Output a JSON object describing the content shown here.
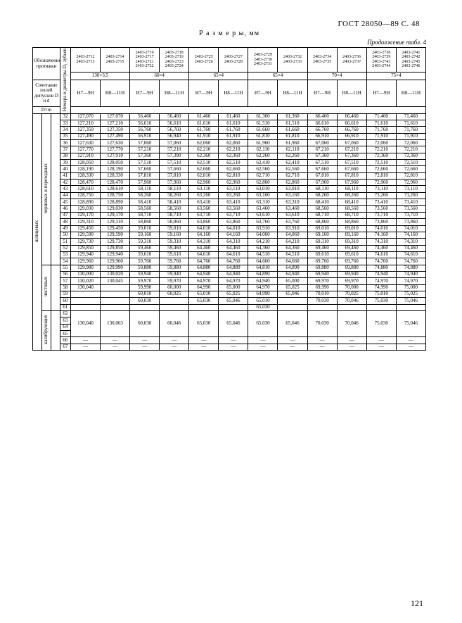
{
  "gost_header": "ГОСТ  28050—89   С.   48",
  "page_number": "121",
  "size_heading": "Р а з м е р ы,  мм",
  "continuation": "Продолжение табл. 4",
  "th_designation": "Обозначение протяжки",
  "th_field_combo": "Сочетание полей допусков D и d",
  "th_dxm": "D×m",
  "th_row_label": "Номера и диаметры D₁ зубьев",
  "th_spline": "шлицевых",
  "th_rough_trans": "черновых и переходных",
  "th_finish": "чистовых",
  "th_calib": "калибрующих",
  "grp_codes": [
    [
      "2403-2712",
      "2403-2713"
    ],
    [
      "2403-2714",
      "2403-2715"
    ],
    [
      "2403-2716",
      "2403-2717",
      "2403-2721",
      "2403-2722"
    ],
    [
      "2403-2718",
      "2403-2719",
      "2403-2723",
      "2403-2724"
    ],
    [
      "2403-2725",
      "2403-2726"
    ],
    [
      "2403-2727",
      "2403-2728"
    ],
    [
      "2403-2729",
      "2403-2730",
      "2403-2731"
    ],
    [
      "2403-2732",
      "2403-2733"
    ],
    [
      "2403-2734",
      "2403-2735"
    ],
    [
      "2403-2736",
      "2403-2737"
    ],
    [
      "2403-2738",
      "2403-2739",
      "2403-2743",
      "2403-2744"
    ],
    [
      "2403-2741",
      "2403-2742",
      "2403-2745",
      "2403-2746"
    ]
  ],
  "grp_dxm": [
    "130×3,5",
    "",
    "60×4",
    "",
    "65×4",
    "",
    "65×4",
    "",
    "70×4",
    "",
    "75×4",
    ""
  ],
  "grp_dxm_span": [
    2,
    0,
    2,
    0,
    2,
    0,
    2,
    0,
    2,
    0,
    2,
    0
  ],
  "tol": [
    "H7—9H",
    "H8—11H",
    "H7—9H",
    "H8—11H",
    "H7—9H",
    "H8—11H",
    "H7—9H",
    "H8—11H",
    "H7—9H",
    "H8—11H",
    "H7—9H",
    "H8—11H"
  ],
  "rows": [
    {
      "n": "32",
      "v": [
        "127,070",
        "127,070",
        "56,460",
        "56,460",
        "61,460",
        "61,460",
        "61,360",
        "61,360",
        "66,460",
        "66,460",
        "71,460",
        "71,460"
      ]
    },
    {
      "n": "33",
      "v": [
        "127,210",
        "127,210",
        "56,610",
        "56,610",
        "61,610",
        "61,610",
        "61,510",
        "61,510",
        "66,610",
        "66,610",
        "71,610",
        "71,610"
      ]
    },
    {
      "n": "34",
      "v": [
        "127,350",
        "127,350",
        "56,760",
        "56,760",
        "61,760",
        "61,760",
        "61,660",
        "61,660",
        "66,760",
        "66,760",
        "71,760",
        "71,760"
      ]
    },
    {
      "n": "35",
      "v": [
        "127,490",
        "127,490",
        "56,910",
        "56,940",
        "61,910",
        "61,910",
        "61,810",
        "61,810",
        "66,910",
        "66,910",
        "71,910",
        "71,910"
      ]
    },
    {
      "n": "36",
      "v": [
        "127,630",
        "127,630",
        "57,060",
        "57,060",
        "62,060",
        "62,060",
        "61,960",
        "61,960",
        "67,060",
        "67,060",
        "72,060",
        "72,060"
      ]
    },
    {
      "n": "37",
      "v": [
        "127,770",
        "127,770",
        "57,210",
        "57,210",
        "62,210",
        "62,210",
        "62,110",
        "62,110",
        "67,210",
        "67,210",
        "72,210",
        "72,210"
      ]
    },
    {
      "n": "38",
      "v": [
        "127,910",
        "127,910",
        "57,360",
        "57,390",
        "62,360",
        "62,360",
        "62,260",
        "62,260",
        "67,360",
        "67,360",
        "72,360",
        "72,360"
      ]
    },
    {
      "n": "39",
      "v": [
        "128,050",
        "128,050",
        "57,510",
        "57,510",
        "62,510",
        "62,510",
        "62,410",
        "62,410",
        "67,510",
        "67,510",
        "72,510",
        "72,510"
      ]
    },
    {
      "n": "40",
      "v": [
        "128,190",
        "128,190",
        "57,660",
        "57,660",
        "62,660",
        "62,660",
        "62,560",
        "62,560",
        "67,660",
        "67,660",
        "72,660",
        "72,660"
      ]
    },
    {
      "n": "41",
      "v": [
        "128,330",
        "128,330",
        "57,810",
        "57,810",
        "62,810",
        "62,810",
        "62,710",
        "62,710",
        "67,810",
        "67,810",
        "72,810",
        "72,810"
      ]
    },
    {
      "n": "42",
      "v": [
        "128,470",
        "128,470",
        "57,960",
        "57,960",
        "62,960",
        "62,960",
        "62,860",
        "62,860",
        "67,960",
        "67,960",
        "72,960",
        "72,960"
      ]
    },
    {
      "n": "43",
      "v": [
        "128,610",
        "128,610",
        "58,110",
        "58,110",
        "63,110",
        "63,110",
        "63,010",
        "63,010",
        "68,110",
        "68,110",
        "73,110",
        "73,110"
      ]
    },
    {
      "n": "44",
      "v": [
        "128,750",
        "128,750",
        "58,260",
        "58,260",
        "63,260",
        "63,260",
        "63,160",
        "63,160",
        "68,260",
        "68,260",
        "73,260",
        "73,260"
      ]
    },
    {
      "n": "45",
      "v": [
        "128,890",
        "128,890",
        "58,410",
        "58,410",
        "63,410",
        "63,410",
        "63,310",
        "63,310",
        "68,410",
        "68,410",
        "73,410",
        "73,410"
      ]
    },
    {
      "n": "46",
      "v": [
        "129,030",
        "129,030",
        "58,560",
        "58,560",
        "63,560",
        "63,560",
        "63,460",
        "63,460",
        "68,560",
        "68,560",
        "73,560",
        "73,560"
      ]
    },
    {
      "n": "47",
      "v": [
        "129,170",
        "129,170",
        "58,710",
        "58,710",
        "63,710",
        "63,710",
        "63,610",
        "63,610",
        "68,710",
        "68,710",
        "73,710",
        "73,710"
      ]
    },
    {
      "n": "48",
      "v": [
        "129,310",
        "129,310",
        "58,860",
        "58,860",
        "63,860",
        "63,860",
        "63,760",
        "63,760",
        "68,860",
        "68,860",
        "73,860",
        "73,860"
      ]
    },
    {
      "n": "49",
      "v": [
        "129,450",
        "129,450",
        "59,010",
        "59,010",
        "64,010",
        "64,010",
        "63,910",
        "63,910",
        "69,010",
        "69,010",
        "74,010",
        "74,010"
      ]
    },
    {
      "n": "50",
      "v": [
        "129,590",
        "129,590",
        "59,160",
        "59,160",
        "64,160",
        "64,160",
        "64,060",
        "64,060",
        "69,160",
        "69,160",
        "74,160",
        "74,160"
      ]
    },
    {
      "n": "51",
      "v": [
        "129,730",
        "129,730",
        "59,310",
        "59,310",
        "64,310",
        "64,310",
        "64,210",
        "64,210",
        "69,310",
        "69,310",
        "74,310",
        "74,310"
      ]
    },
    {
      "n": "52",
      "v": [
        "129,850",
        "129,850",
        "59,460",
        "59,460",
        "64,460",
        "64,460",
        "64,360",
        "64,360",
        "69,460",
        "69,460",
        "74,460",
        "74,460"
      ]
    },
    {
      "n": "53",
      "v": [
        "129,940",
        "129,940",
        "59,610",
        "59,610",
        "64,610",
        "64,610",
        "64,510",
        "64,510",
        "69,610",
        "69,610",
        "74,610",
        "74,610"
      ]
    },
    {
      "n": "54",
      "v": [
        "129,960",
        "129,960",
        "59,760",
        "59,760",
        "64,760",
        "64,760",
        "64,660",
        "64,660",
        "69,760",
        "69,760",
        "74,760",
        "74,760"
      ]
    }
  ],
  "finish_rows": [
    {
      "n": "55",
      "v": [
        "129,980",
        "129,990",
        "59,880",
        "59,880",
        "64,880",
        "64,880",
        "64,810",
        "64,890",
        "69,880",
        "69,880",
        "74,880",
        "74,880"
      ]
    },
    {
      "n": "56",
      "v": [
        "130,000",
        "130,020",
        "59,940",
        "59,940",
        "64,940",
        "64,940",
        "64,890",
        "64,940",
        "69,940",
        "69,940",
        "74,940",
        "74,940"
      ]
    },
    {
      "n": "57",
      "v": [
        "130,020",
        "130,045",
        "59,970",
        "59,970",
        "64,970",
        "64,970",
        "64,940",
        "65,000",
        "69,970",
        "69,970",
        "74,970",
        "74,970"
      ]
    },
    {
      "n": "58",
      "v": [
        "130,040",
        "",
        "59,990",
        "60,000",
        "64,990",
        "65,000",
        "64,970",
        "65,025",
        "69,990",
        "70,000",
        "74,990",
        "75,000"
      ]
    },
    {
      "n": "59",
      "v": [
        "",
        "",
        "60,010",
        "60,025",
        "65,010",
        "65,025",
        "64,990",
        "65,046",
        "70,010",
        "70,025",
        "75,010",
        "75,025"
      ]
    },
    {
      "n": "60",
      "v": [
        "",
        "",
        "60,030",
        "",
        "65,030",
        "65,046",
        "65,010",
        "",
        "70,030",
        "70,046",
        "75,030",
        "75,046"
      ]
    },
    {
      "n": "61",
      "v": [
        "",
        "",
        "",
        "",
        "",
        "",
        "65,030",
        "",
        "",
        "",
        "",
        ""
      ]
    }
  ],
  "calib_rows": [
    {
      "n": "62",
      "v": [
        "130,040",
        "130,063",
        "60,030",
        "60,046",
        "65,030",
        "65,046",
        "65,030",
        "65,046",
        "70,030",
        "70,046",
        "75,030",
        "75,046"
      ]
    }
  ],
  "tail_rows": [
    "63",
    "64",
    "65",
    "66",
    "67"
  ],
  "dash": "—"
}
